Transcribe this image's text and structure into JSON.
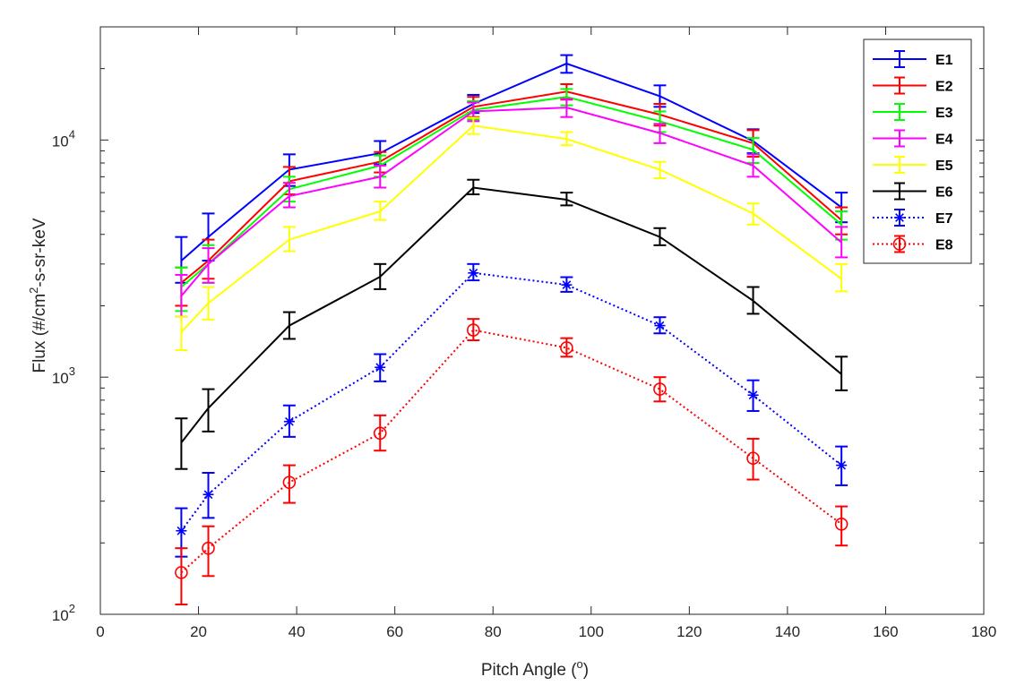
{
  "chart_data": {
    "type": "line",
    "title": "",
    "xlabel": {
      "text": "Pitch Angle (",
      "sup": "o",
      "suffix": ")"
    },
    "ylabel": {
      "text": "Flux (#/cm",
      "sup": "2",
      "suffix": "-s-sr-keV"
    },
    "xlim": [
      0,
      180
    ],
    "ylim": [
      100,
      30000
    ],
    "yscale": "log",
    "grid": false,
    "legend_position": "top-right",
    "x_ticks": [
      0,
      20,
      40,
      60,
      80,
      100,
      120,
      140,
      160,
      180
    ],
    "x_tick_labels": [
      "0",
      "20",
      "40",
      "60",
      "80",
      "100",
      "120",
      "140",
      "160",
      "180"
    ],
    "y_ticks": [
      {
        "value": 100,
        "base": "10",
        "exp": "2"
      },
      {
        "value": 1000,
        "base": "10",
        "exp": "3"
      },
      {
        "value": 10000,
        "base": "10",
        "exp": "4"
      }
    ],
    "x": [
      16.5,
      22,
      38.5,
      57,
      76,
      95,
      114,
      133,
      151
    ],
    "series": [
      {
        "name": "E1",
        "color": "#0000ff",
        "line": "solid",
        "marker": "none",
        "values": [
          3100,
          3900,
          7500,
          8800,
          14200,
          21000,
          15300,
          9900,
          5200
        ],
        "err_low": [
          2500,
          3100,
          6400,
          7900,
          13000,
          19200,
          13800,
          8800,
          4500
        ],
        "err_high": [
          3900,
          4900,
          8700,
          9900,
          15500,
          22800,
          17000,
          11100,
          6000
        ]
      },
      {
        "name": "E2",
        "color": "#ff0000",
        "line": "solid",
        "marker": "none",
        "values": [
          2500,
          3100,
          6700,
          8100,
          13800,
          16000,
          12800,
          9700,
          4600
        ],
        "err_low": [
          2000,
          2600,
          5900,
          7300,
          12500,
          14800,
          11500,
          8500,
          4000
        ],
        "err_high": [
          2900,
          3800,
          7700,
          8900,
          15200,
          17200,
          14200,
          11000,
          5200
        ]
      },
      {
        "name": "E3",
        "color": "#00ff00",
        "line": "solid",
        "marker": "none",
        "values": [
          2400,
          3000,
          6200,
          7800,
          13400,
          15200,
          12000,
          9100,
          4400
        ],
        "err_low": [
          1900,
          2500,
          5500,
          7000,
          12200,
          14000,
          10800,
          8000,
          3800
        ],
        "err_high": [
          2900,
          3600,
          7000,
          8600,
          14600,
          16400,
          13200,
          10200,
          5000
        ]
      },
      {
        "name": "E4",
        "color": "#ff00ff",
        "line": "solid",
        "marker": "none",
        "values": [
          2200,
          3000,
          5800,
          7000,
          13200,
          13700,
          10700,
          7800,
          3700
        ],
        "err_low": [
          1800,
          2500,
          5200,
          6300,
          12000,
          12500,
          9700,
          7000,
          3200
        ],
        "err_high": [
          2700,
          3500,
          6600,
          7800,
          14400,
          14900,
          11700,
          8700,
          4300
        ]
      },
      {
        "name": "E5",
        "color": "#ffff00",
        "line": "solid",
        "marker": "none",
        "values": [
          1550,
          2050,
          3800,
          5000,
          11500,
          10100,
          7500,
          4900,
          2600
        ],
        "err_low": [
          1300,
          1750,
          3400,
          4600,
          10600,
          9500,
          6900,
          4400,
          2300
        ],
        "err_high": [
          1800,
          2400,
          4300,
          5500,
          12400,
          10800,
          8100,
          5400,
          3000
        ]
      },
      {
        "name": "E6",
        "color": "#000000",
        "line": "solid",
        "marker": "none",
        "values": [
          530,
          740,
          1650,
          2650,
          6300,
          5600,
          3900,
          2100,
          1030
        ],
        "err_low": [
          410,
          590,
          1450,
          2350,
          5900,
          5300,
          3600,
          1850,
          880
        ],
        "err_high": [
          670,
          890,
          1880,
          3000,
          6800,
          6000,
          4250,
          2400,
          1220
        ]
      },
      {
        "name": "E7",
        "color": "#0000ff",
        "line": "dotted",
        "marker": "star",
        "values": [
          225,
          320,
          650,
          1100,
          2750,
          2450,
          1650,
          840,
          425
        ],
        "err_low": [
          175,
          255,
          560,
          960,
          2560,
          2290,
          1530,
          720,
          350
        ],
        "err_high": [
          280,
          395,
          760,
          1250,
          3000,
          2640,
          1790,
          970,
          510
        ]
      },
      {
        "name": "E8",
        "color": "#ff0000",
        "line": "dotted",
        "marker": "circle",
        "values": [
          150,
          190,
          360,
          580,
          1580,
          1330,
          890,
          455,
          240
        ],
        "err_low": [
          110,
          145,
          295,
          490,
          1430,
          1220,
          790,
          370,
          195
        ],
        "err_high": [
          190,
          235,
          425,
          690,
          1760,
          1460,
          1000,
          550,
          285
        ]
      }
    ]
  }
}
